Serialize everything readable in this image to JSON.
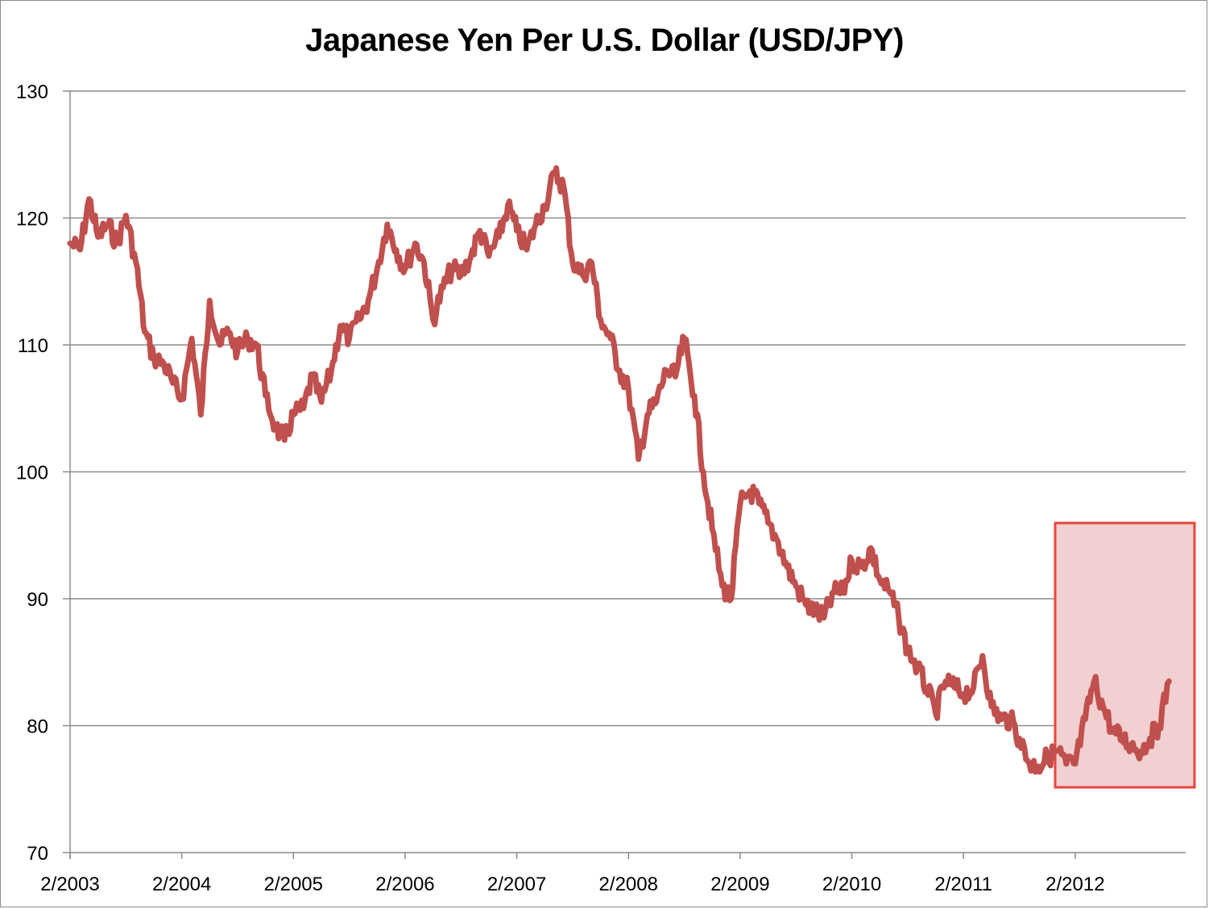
{
  "chart": {
    "title": "Japanese Yen Per U.S. Dollar (USD/JPY)",
    "line_color": "#c0504d",
    "highlight_border_color": "#e8453c",
    "highlight_fill_color": "#f2cfd0",
    "gridline_color": "#8c8c8c"
  },
  "chart_data": {
    "type": "line",
    "title": "Japanese Yen Per U.S. Dollar (USD/JPY)",
    "xlabel": "",
    "ylabel": "",
    "ylim": [
      70,
      130
    ],
    "yticks": [
      70,
      80,
      90,
      100,
      110,
      120,
      130
    ],
    "xticks": [
      "2/2003",
      "2/2004",
      "2/2005",
      "2/2006",
      "2/2007",
      "2/2008",
      "2/2009",
      "2/2010",
      "2/2011",
      "2/2012"
    ],
    "grid": "horizontal",
    "legend": "none",
    "annotations": [
      {
        "type": "highlight-box",
        "x_start": "12/2011",
        "x_end": "1/2013",
        "y_range": [
          75,
          96
        ]
      }
    ],
    "series": [
      {
        "name": "USD/JPY",
        "x": [
          2003.08,
          2003.17,
          2003.25,
          2003.33,
          2003.42,
          2003.5,
          2003.58,
          2003.67,
          2003.75,
          2003.83,
          2003.92,
          2004.0,
          2004.08,
          2004.17,
          2004.25,
          2004.33,
          2004.42,
          2004.5,
          2004.58,
          2004.67,
          2004.75,
          2004.83,
          2004.92,
          2005.0,
          2005.08,
          2005.17,
          2005.25,
          2005.33,
          2005.42,
          2005.5,
          2005.58,
          2005.67,
          2005.75,
          2005.83,
          2005.92,
          2006.0,
          2006.08,
          2006.17,
          2006.25,
          2006.33,
          2006.42,
          2006.5,
          2006.58,
          2006.67,
          2006.75,
          2006.83,
          2006.92,
          2007.0,
          2007.08,
          2007.17,
          2007.25,
          2007.33,
          2007.42,
          2007.5,
          2007.58,
          2007.67,
          2007.75,
          2007.83,
          2007.92,
          2008.0,
          2008.08,
          2008.17,
          2008.25,
          2008.33,
          2008.42,
          2008.5,
          2008.58,
          2008.67,
          2008.75,
          2008.83,
          2008.92,
          2009.0,
          2009.08,
          2009.17,
          2009.25,
          2009.33,
          2009.42,
          2009.5,
          2009.58,
          2009.67,
          2009.75,
          2009.83,
          2009.92,
          2010.0,
          2010.08,
          2010.17,
          2010.25,
          2010.33,
          2010.42,
          2010.5,
          2010.58,
          2010.67,
          2010.75,
          2010.83,
          2010.92,
          2011.0,
          2011.08,
          2011.17,
          2011.25,
          2011.33,
          2011.42,
          2011.5,
          2011.58,
          2011.67,
          2011.75,
          2011.83,
          2011.92,
          2012.0,
          2012.08,
          2012.17,
          2012.25,
          2012.33,
          2012.42,
          2012.5,
          2012.58,
          2012.67,
          2012.75,
          2012.83,
          2012.92
        ],
        "values": [
          118.0,
          117.5,
          121.5,
          118.5,
          119.5,
          118.0,
          120.2,
          116.5,
          111.0,
          109.0,
          108.5,
          107.0,
          105.7,
          110.5,
          104.5,
          113.5,
          110.0,
          111.0,
          109.5,
          110.5,
          110.0,
          106.0,
          103.5,
          102.5,
          104.5,
          105.0,
          107.5,
          105.5,
          108.0,
          111.5,
          110.5,
          112.0,
          113.5,
          116.0,
          119.5,
          117.5,
          116.0,
          118.0,
          116.5,
          112.0,
          114.5,
          116.0,
          115.5,
          117.0,
          119.0,
          117.0,
          118.5,
          121.0,
          119.0,
          117.5,
          119.5,
          121.0,
          123.5,
          122.5,
          116.5,
          115.5,
          116.5,
          112.0,
          110.5,
          108.0,
          106.5,
          101.0,
          104.5,
          105.5,
          108.0,
          107.5,
          110.5,
          106.0,
          100.0,
          95.5,
          91.0,
          90.0,
          97.5,
          98.5,
          97.5,
          96.0,
          94.5,
          92.5,
          91.0,
          89.5,
          89.0,
          88.5,
          90.5,
          90.5,
          93.0,
          92.5,
          94.0,
          91.5,
          90.5,
          88.5,
          86.0,
          84.5,
          83.0,
          81.0,
          83.5,
          83.0,
          82.5,
          83.0,
          85.5,
          81.5,
          80.5,
          80.5,
          79.0,
          77.0,
          76.8,
          77.5,
          78.0,
          77.0,
          77.0,
          80.5,
          83.5,
          81.5,
          79.5,
          79.0,
          78.5,
          78.0,
          79.0,
          80.0,
          83.5
        ]
      }
    ]
  }
}
